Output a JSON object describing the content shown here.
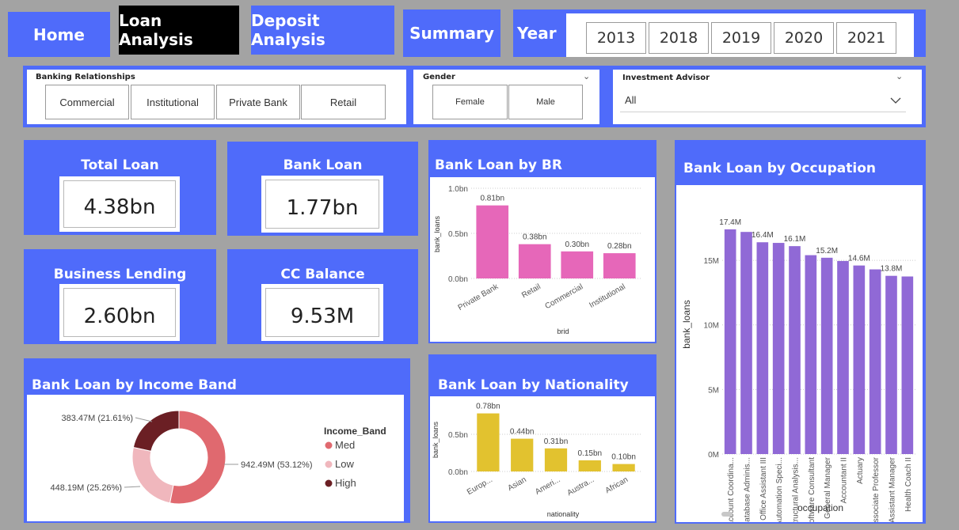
{
  "nav": {
    "home": "Home",
    "loan_analysis": "Loan Analysis",
    "deposit_analysis": "Deposit Analysis",
    "summary": "Summary",
    "year_label": "Year",
    "years": [
      "2013",
      "2018",
      "2019",
      "2020",
      "2021"
    ]
  },
  "slicers": {
    "banking_relationships": {
      "title": "Banking Relationships",
      "options": [
        "Commercial",
        "Institutional",
        "Private Bank",
        "Retail"
      ]
    },
    "gender": {
      "title": "Gender",
      "options": [
        "Female",
        "Male"
      ]
    },
    "investment_advisor": {
      "title": "Investment Advisor",
      "value": "All"
    }
  },
  "kpis": {
    "total_loan": {
      "label": "Total Loan",
      "value": "4.38bn"
    },
    "bank_loan": {
      "label": "Bank Loan",
      "value": "1.77bn"
    },
    "business_lending": {
      "label": "Business Lending",
      "value": "2.60bn"
    },
    "cc_balance": {
      "label": "CC Balance",
      "value": "9.53M"
    }
  },
  "colors": {
    "panel_blue": "#4f6bfa",
    "background": "#a3a3a3",
    "pink": "#e667b9",
    "gold": "#e2c22f",
    "purple": "#9069d6",
    "donut_med": "#e0696f",
    "donut_low": "#f0b7bd",
    "donut_high": "#6b1f24"
  },
  "chart_data": [
    {
      "id": "br",
      "type": "bar",
      "title": "Bank Loan by BR",
      "xlabel": "brid",
      "ylabel": "bank_loans",
      "categories": [
        "Private Bank",
        "Retail",
        "Commercial",
        "Institutional"
      ],
      "values": [
        0.81,
        0.38,
        0.3,
        0.28
      ],
      "data_labels": [
        "0.81bn",
        "0.38bn",
        "0.30bn",
        "0.28bn"
      ],
      "yticks": [
        0,
        0.5,
        1.0
      ],
      "ytick_labels": [
        "0.0bn",
        "0.5bn",
        "1.0bn"
      ],
      "ylim": [
        0,
        1.0
      ],
      "color": "#e667b9"
    },
    {
      "id": "nationality",
      "type": "bar",
      "title": "Bank Loan by Nationality",
      "xlabel": "nationality",
      "ylabel": "bank_loans",
      "categories": [
        "Europ...",
        "Asian",
        "Ameri...",
        "Austra...",
        "African"
      ],
      "values": [
        0.78,
        0.44,
        0.31,
        0.15,
        0.1
      ],
      "data_labels": [
        "0.78bn",
        "0.44bn",
        "0.31bn",
        "0.15bn",
        "0.10bn"
      ],
      "yticks": [
        0,
        0.5
      ],
      "ytick_labels": [
        "0.0bn",
        "0.5bn"
      ],
      "ylim": [
        0,
        0.85
      ],
      "color": "#e2c22f"
    },
    {
      "id": "occupation",
      "type": "bar",
      "title": "Bank Loan by Occupation",
      "xlabel": "occupation",
      "ylabel": "bank_loans",
      "categories": [
        "Account Coordina...",
        "Database Adminis...",
        "Office Assistant III",
        "Automation Speci...",
        "Structural Analysis...",
        "Software Consultant",
        "General Manager",
        "Accountant II",
        "Actuary",
        "Associate Professor",
        "Assistant Manager",
        "Health Coach II"
      ],
      "values": [
        17.4,
        17.2,
        16.4,
        16.35,
        16.1,
        15.4,
        15.2,
        14.95,
        14.6,
        14.3,
        13.8,
        13.75
      ],
      "data_labels": [
        "17.4M",
        "",
        "16.4M",
        "",
        "16.1M",
        "",
        "15.2M",
        "",
        "14.6M",
        "",
        "13.8M",
        ""
      ],
      "yticks": [
        0,
        5,
        10,
        15
      ],
      "ytick_labels": [
        "0M",
        "5M",
        "10M",
        "15M"
      ],
      "ylim": [
        0,
        19.6
      ],
      "color": "#9069d6"
    },
    {
      "id": "income",
      "type": "pie",
      "title": "Bank Loan by Income Band",
      "legend_title": "Income_Band",
      "slices": [
        {
          "name": "Med",
          "value": 942.49,
          "label": "942.49M (53.12%)",
          "color": "#e0696f"
        },
        {
          "name": "Low",
          "value": 448.19,
          "label": "448.19M (25.26%)",
          "color": "#f0b7bd"
        },
        {
          "name": "High",
          "value": 383.47,
          "label": "383.47M (21.61%)",
          "color": "#6b1f24"
        }
      ]
    }
  ]
}
